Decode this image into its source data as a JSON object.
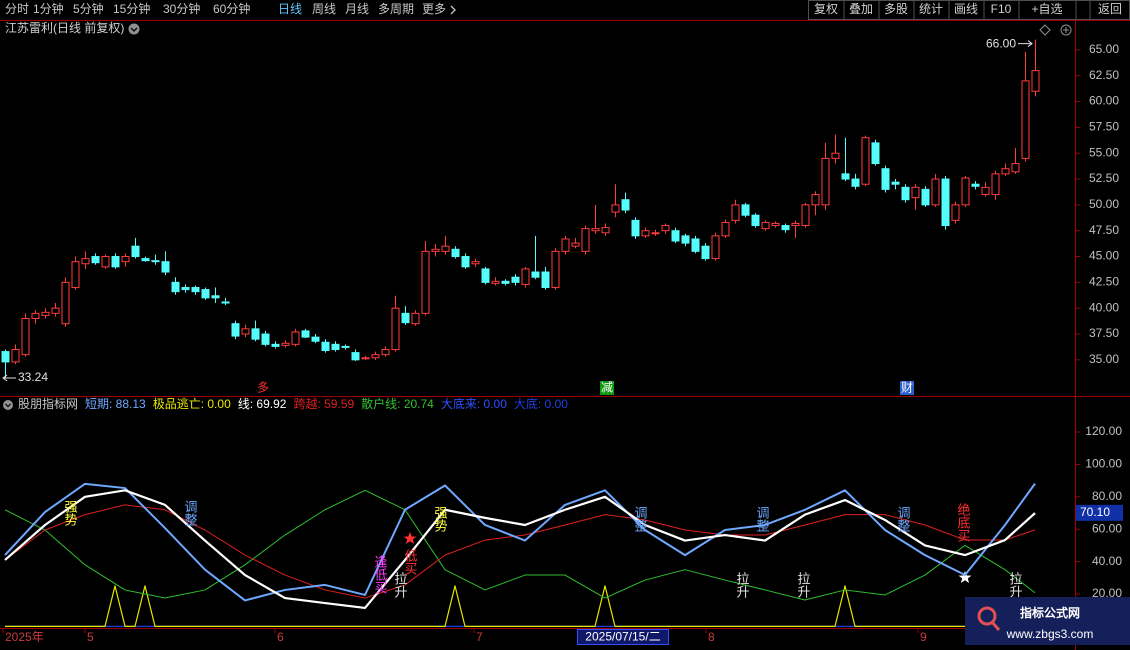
{
  "toolbar": {
    "periods": [
      "分时",
      "1分钟",
      "5分钟",
      "15分钟",
      "30分钟",
      "60分钟",
      "日线",
      "周线",
      "月线",
      "多周期",
      "更多"
    ],
    "active": 6,
    "buttons": [
      "复权",
      "叠加",
      "多股",
      "统计",
      "画线",
      "F10",
      "+自选",
      "返回"
    ]
  },
  "chart_data": [
    {
      "type": "candlestick",
      "title": "江苏雷利(日线 前复权)",
      "up_color": "#ff3c3c",
      "down_color": "#54fcfc",
      "ylim": [
        31.5,
        67.7
      ],
      "yticks": [
        {
          "value": 35,
          "label": "35.00"
        },
        {
          "value": 37.5,
          "label": "37.50"
        },
        {
          "value": 40,
          "label": "40.00"
        },
        {
          "value": 42.5,
          "label": "42.50"
        },
        {
          "value": 45,
          "label": "45.00"
        },
        {
          "value": 47.5,
          "label": "47.50"
        },
        {
          "value": 50,
          "label": "50.00"
        },
        {
          "value": 52.5,
          "label": "52.50"
        },
        {
          "value": 55,
          "label": "55.00"
        },
        {
          "value": 57.5,
          "label": "57.50"
        },
        {
          "value": 60,
          "label": "60.00"
        },
        {
          "value": 62.5,
          "label": "62.50"
        },
        {
          "value": 65,
          "label": "65.00"
        }
      ],
      "ohlc": [
        [
          35.8,
          36.0,
          33.24,
          34.8
        ],
        [
          34.8,
          36.5,
          34.6,
          36.0
        ],
        [
          35.5,
          39.5,
          35.3,
          39.0
        ],
        [
          39.0,
          39.8,
          38.5,
          39.5
        ],
        [
          39.3,
          40.0,
          39.0,
          39.6
        ],
        [
          39.5,
          40.5,
          39.2,
          40.0
        ],
        [
          38.5,
          43.0,
          38.2,
          42.5
        ],
        [
          42.0,
          45.0,
          41.8,
          44.5
        ],
        [
          44.3,
          45.5,
          43.8,
          44.8
        ],
        [
          45.0,
          45.3,
          44.2,
          44.4
        ],
        [
          44.0,
          45.2,
          43.8,
          45.0
        ],
        [
          45.0,
          45.3,
          43.8,
          44.0
        ],
        [
          44.5,
          45.3,
          44.0,
          45.0
        ],
        [
          46.0,
          46.8,
          44.8,
          45.0
        ],
        [
          44.8,
          45.0,
          44.5,
          44.6
        ],
        [
          44.6,
          45.2,
          44.2,
          44.5
        ],
        [
          44.5,
          45.5,
          43.2,
          43.5
        ],
        [
          42.5,
          43.0,
          41.3,
          41.6
        ],
        [
          42.0,
          42.3,
          41.5,
          41.8
        ],
        [
          42.0,
          42.2,
          41.3,
          41.6
        ],
        [
          41.8,
          42.0,
          40.8,
          41.0
        ],
        [
          41.2,
          42.0,
          40.5,
          41.0
        ],
        [
          40.6,
          41.0,
          40.3,
          40.5
        ],
        [
          38.5,
          38.8,
          37.0,
          37.3
        ],
        [
          37.5,
          38.4,
          37.2,
          38.0
        ],
        [
          38.0,
          38.8,
          36.8,
          37.0
        ],
        [
          37.5,
          37.8,
          36.3,
          36.5
        ],
        [
          36.5,
          36.8,
          36.1,
          36.3
        ],
        [
          36.4,
          36.9,
          36.2,
          36.6
        ],
        [
          36.5,
          38.0,
          36.3,
          37.7
        ],
        [
          37.8,
          38.0,
          37.1,
          37.2
        ],
        [
          37.2,
          37.5,
          36.6,
          36.8
        ],
        [
          36.7,
          37.0,
          35.7,
          35.9
        ],
        [
          36.5,
          36.8,
          35.8,
          36.0
        ],
        [
          36.3,
          36.5,
          36.0,
          36.2
        ],
        [
          35.7,
          36.0,
          34.9,
          35.0
        ],
        [
          35.1,
          35.4,
          35.0,
          35.2
        ],
        [
          35.2,
          35.8,
          35.0,
          35.5
        ],
        [
          35.5,
          36.3,
          35.3,
          36.0
        ],
        [
          36.0,
          41.2,
          35.8,
          40.0
        ],
        [
          39.5,
          40.2,
          38.4,
          38.6
        ],
        [
          38.5,
          39.8,
          38.3,
          39.5
        ],
        [
          39.5,
          46.5,
          39.3,
          45.5
        ],
        [
          45.5,
          46.2,
          45.0,
          45.7
        ],
        [
          45.5,
          47.0,
          45.2,
          46.0
        ],
        [
          45.7,
          46.0,
          44.8,
          45.0
        ],
        [
          45.0,
          45.3,
          43.8,
          44.0
        ],
        [
          44.3,
          44.8,
          44.0,
          44.5
        ],
        [
          43.8,
          44.0,
          42.3,
          42.5
        ],
        [
          42.4,
          43.0,
          42.2,
          42.6
        ],
        [
          42.6,
          42.8,
          42.2,
          42.4
        ],
        [
          43.0,
          43.3,
          42.2,
          42.5
        ],
        [
          42.3,
          44.0,
          42.0,
          43.8
        ],
        [
          43.5,
          47.0,
          42.8,
          43.0
        ],
        [
          43.5,
          44.0,
          41.8,
          42.0
        ],
        [
          42.0,
          45.8,
          41.8,
          45.5
        ],
        [
          45.5,
          47.0,
          45.2,
          46.7
        ],
        [
          46.0,
          46.8,
          45.8,
          46.3
        ],
        [
          45.5,
          48.0,
          45.2,
          47.7
        ],
        [
          47.5,
          50.0,
          47.2,
          47.7
        ],
        [
          47.3,
          48.2,
          47.0,
          47.8
        ],
        [
          49.3,
          52.0,
          48.8,
          50.0
        ],
        [
          50.5,
          51.2,
          49.2,
          49.5
        ],
        [
          48.5,
          48.8,
          46.7,
          47.0
        ],
        [
          47.0,
          47.8,
          46.8,
          47.5
        ],
        [
          47.3,
          47.6,
          47.0,
          47.3
        ],
        [
          47.5,
          48.2,
          47.2,
          48.0
        ],
        [
          47.5,
          47.8,
          46.3,
          46.5
        ],
        [
          47.0,
          47.2,
          46.0,
          46.3
        ],
        [
          46.7,
          47.0,
          45.3,
          45.5
        ],
        [
          46.0,
          46.3,
          44.6,
          44.8
        ],
        [
          44.8,
          47.3,
          44.6,
          47.0
        ],
        [
          47.0,
          48.6,
          46.8,
          48.3
        ],
        [
          48.5,
          50.5,
          48.2,
          50.0
        ],
        [
          50.0,
          50.2,
          48.8,
          49.0
        ],
        [
          49.0,
          49.2,
          47.8,
          48.0
        ],
        [
          47.7,
          48.5,
          47.5,
          48.3
        ],
        [
          48.0,
          48.4,
          47.8,
          48.2
        ],
        [
          48.0,
          48.2,
          47.3,
          47.6
        ],
        [
          48.0,
          48.5,
          46.8,
          48.2
        ],
        [
          48.0,
          50.2,
          47.8,
          50.0
        ],
        [
          50.0,
          51.3,
          49.0,
          51.0
        ],
        [
          50.0,
          56.0,
          49.5,
          54.5
        ],
        [
          54.5,
          56.8,
          54.0,
          55.0
        ],
        [
          53.0,
          56.5,
          52.3,
          52.5
        ],
        [
          52.5,
          53.0,
          51.5,
          51.8
        ],
        [
          52.0,
          56.7,
          51.8,
          56.5
        ],
        [
          56.0,
          56.3,
          53.8,
          54.0
        ],
        [
          53.5,
          53.8,
          51.2,
          51.5
        ],
        [
          52.2,
          52.5,
          51.5,
          52.0
        ],
        [
          51.7,
          52.0,
          50.2,
          50.5
        ],
        [
          50.7,
          52.0,
          49.5,
          51.7
        ],
        [
          51.5,
          51.8,
          49.8,
          50.0
        ],
        [
          50.0,
          53.0,
          49.8,
          52.5
        ],
        [
          52.5,
          52.8,
          47.6,
          48.0
        ],
        [
          48.5,
          50.3,
          48.2,
          50.0
        ],
        [
          50.0,
          52.8,
          49.8,
          52.6
        ],
        [
          52.0,
          52.3,
          51.5,
          51.8
        ],
        [
          51.0,
          52.2,
          50.8,
          51.7
        ],
        [
          51.0,
          53.3,
          50.5,
          53.0
        ],
        [
          53.0,
          54.0,
          52.8,
          53.5
        ],
        [
          53.2,
          55.5,
          53.0,
          54.0
        ],
        [
          54.5,
          64.8,
          54.2,
          62.0
        ],
        [
          61.0,
          66.0,
          60.5,
          63.0
        ]
      ],
      "high_marker": {
        "value": 66,
        "label": "66.00"
      },
      "low_marker": {
        "value": 33.24,
        "label": "33.24"
      },
      "markers": [
        {
          "text": "多",
          "color": "#ff3030",
          "boxed": false
        },
        {
          "text": "减",
          "color": "#109a10",
          "boxed": true
        },
        {
          "text": "财",
          "color": "#2a5fd0",
          "boxed": true
        }
      ]
    },
    {
      "type": "line",
      "title": "股朋指标网",
      "ylim": [
        -1,
        141
      ],
      "yticks": [
        {
          "value": 20,
          "label": "20.00"
        },
        {
          "value": 40,
          "label": "40.00"
        },
        {
          "value": 60,
          "label": "60.00"
        },
        {
          "value": 80,
          "label": "80.00"
        },
        {
          "value": 100,
          "label": "100.00"
        },
        {
          "value": 120,
          "label": "120.00"
        }
      ],
      "x": [
        0,
        4,
        8,
        12,
        16,
        20,
        24,
        28,
        32,
        36,
        40,
        44,
        48,
        52,
        56,
        60,
        64,
        68,
        72,
        76,
        80,
        84,
        88,
        92,
        96,
        100,
        103
      ],
      "series": [
        {
          "name": "短期: 88.13",
          "color": "#6fa8ff",
          "values": [
            44,
            70.6,
            88,
            85.4,
            60.7,
            35,
            16,
            22.5,
            25.6,
            19.4,
            72,
            87,
            62.6,
            53,
            75,
            84,
            59.5,
            44,
            59.5,
            62.6,
            72,
            84,
            59.5,
            44,
            31.7,
            62.6,
            88.13
          ]
        },
        {
          "name": "极品逃亡: 0.00",
          "color": "#e8e800",
          "x": [
            0,
            10,
            11,
            12,
            13,
            14,
            15,
            44,
            45,
            46,
            59,
            60,
            61,
            83,
            84,
            85,
            103
          ],
          "values": [
            0,
            0,
            25,
            0,
            0,
            25,
            0,
            0,
            25,
            0,
            0,
            25,
            0,
            0,
            25,
            0,
            0
          ]
        },
        {
          "name": "线: 69.92",
          "color": "#ffffff",
          "values": [
            41,
            62.6,
            80,
            84,
            75,
            53,
            31.7,
            17.5,
            14.4,
            11.4,
            41,
            72,
            67,
            62.6,
            72,
            80,
            62.6,
            53,
            56.4,
            53,
            69,
            78,
            65.7,
            50,
            44,
            53.3,
            69.92
          ]
        },
        {
          "name": "跨越: 59.59",
          "color": "#e02020",
          "values": [
            41,
            59.5,
            69,
            75,
            72,
            59.5,
            44,
            31.7,
            22.5,
            17.5,
            25.6,
            44,
            53.3,
            56.4,
            62.6,
            69,
            65.7,
            59.5,
            56.4,
            56.4,
            62.6,
            69,
            69,
            62.6,
            53.3,
            53.3,
            59.59
          ]
        },
        {
          "name": "散户线: 20.74",
          "color": "#30c030",
          "values": [
            72,
            59.5,
            38,
            22.5,
            17.5,
            22.5,
            38,
            56.4,
            72,
            84,
            72,
            35,
            22.5,
            31.7,
            31.7,
            17.5,
            28.6,
            35,
            28.6,
            22.5,
            16.3,
            22.5,
            19.4,
            31.7,
            50,
            35,
            20.74
          ]
        },
        {
          "name": "大底来: 0.00",
          "color": "#3050ff",
          "x": [
            0,
            103
          ],
          "values": [
            0,
            0
          ]
        },
        {
          "name": "大底: 0.00",
          "color": "#2040e0",
          "x": [
            0,
            103
          ],
          "values": [
            0,
            0
          ]
        }
      ],
      "annotations": [
        {
          "text": "强势",
          "color": "#ffff40"
        },
        {
          "text": "调整",
          "color": "#6fa8ff"
        },
        {
          "text": "逢低买",
          "color": "#ff40ff"
        },
        {
          "text": "拉升",
          "color": "#e0e0e0"
        },
        {
          "text": "低买",
          "color": "#ff3030"
        },
        {
          "text": "强势",
          "color": "#ffff40"
        },
        {
          "text": "调整",
          "color": "#6fa8ff"
        },
        {
          "text": "调整",
          "color": "#6fa8ff"
        },
        {
          "text": "调整",
          "color": "#6fa8ff"
        },
        {
          "text": "拉升",
          "color": "#e0e0e0"
        },
        {
          "text": "拉升",
          "color": "#e0e0e0"
        },
        {
          "text": "绝底买",
          "color": "#ff3030"
        },
        {
          "text": "拉升",
          "color": "#e0e0e0"
        }
      ],
      "cursor_value": {
        "value": 70.1,
        "label": "70.10"
      }
    }
  ],
  "date_axis": {
    "labels": [
      "2025年",
      "5",
      "6",
      "7",
      "8",
      "9"
    ],
    "cursor": "2025/07/15/二"
  },
  "watermark": {
    "title": "指标公式网",
    "url": "www.zbgs3.com"
  }
}
